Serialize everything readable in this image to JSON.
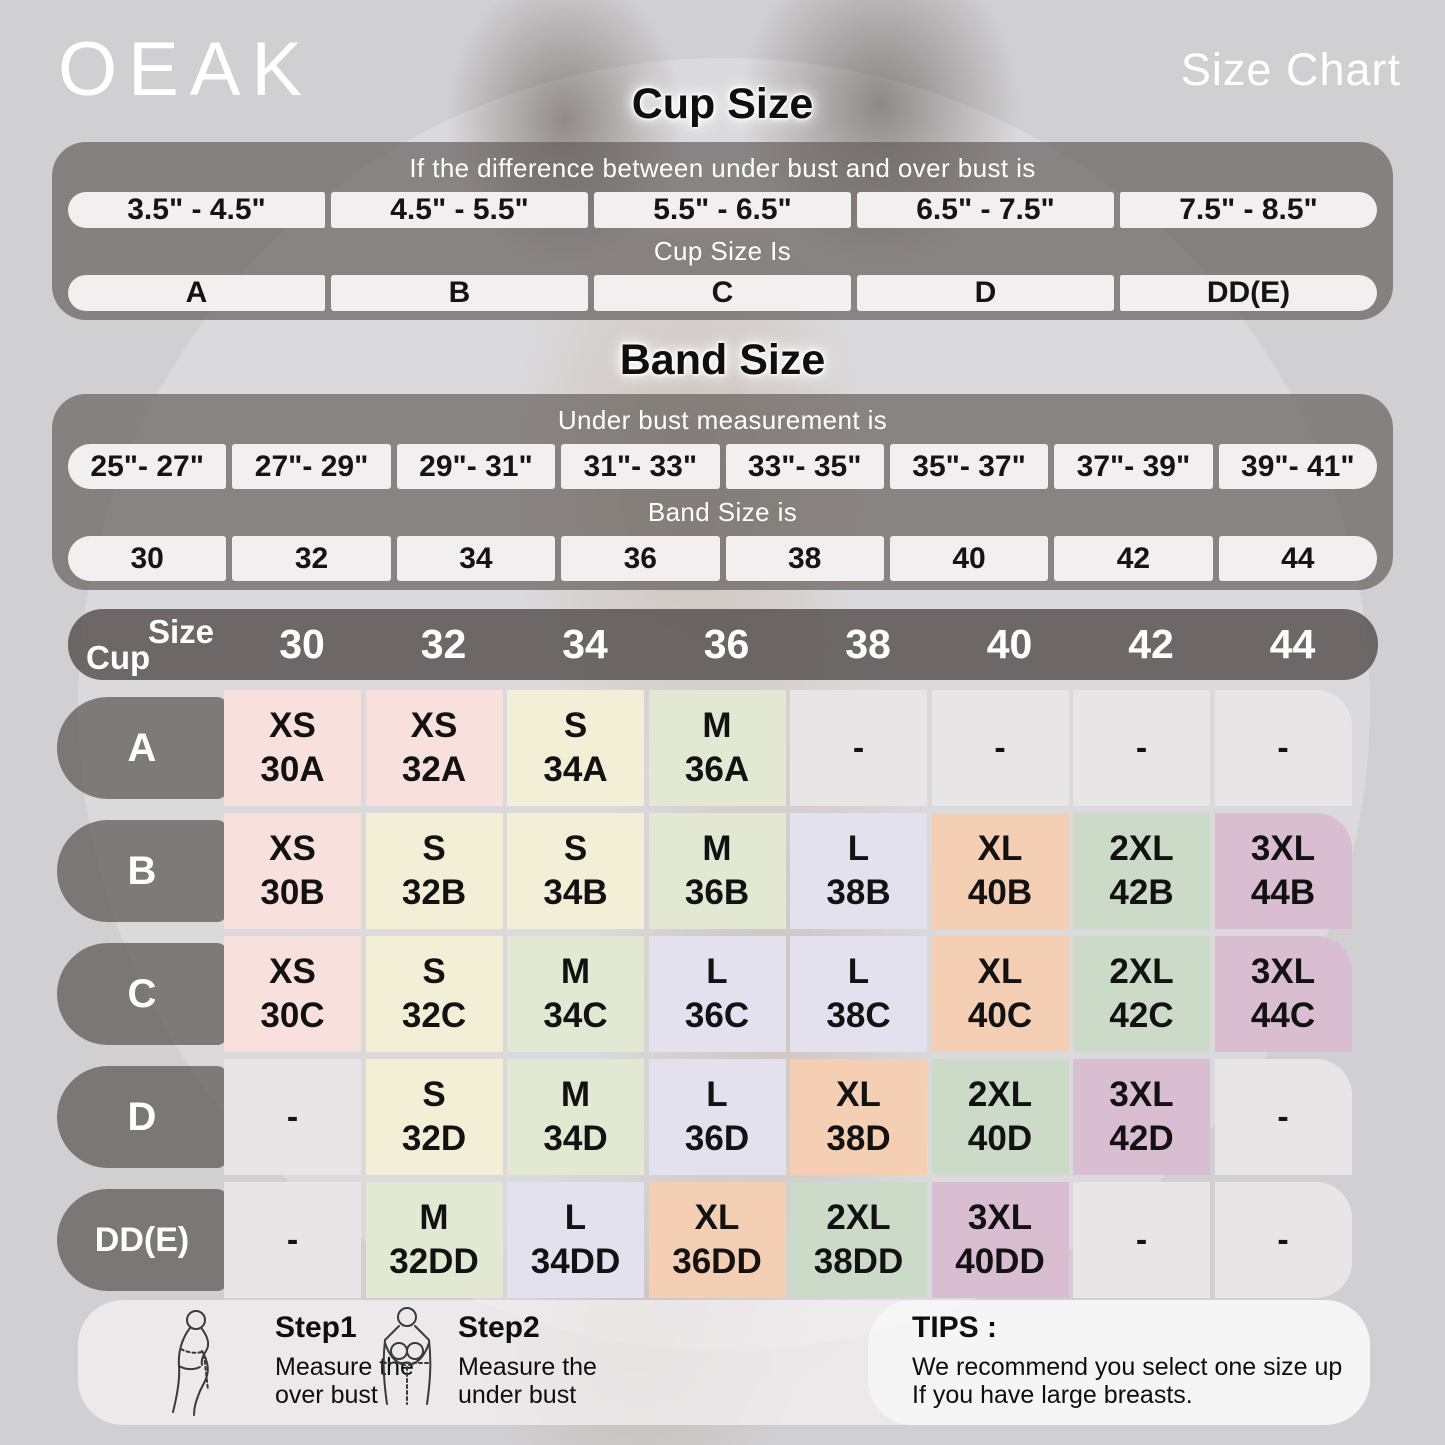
{
  "header": {
    "brand": "OEAK",
    "title": "Size Chart"
  },
  "cup_section": {
    "heading": "Cup Size",
    "condition": "If the difference between under bust and over bust is",
    "ranges": [
      "3.5\" - 4.5\"",
      "4.5\" - 5.5\"",
      "5.5\" - 6.5\"",
      "6.5\" - 7.5\"",
      "7.5\" - 8.5\""
    ],
    "result_label": "Cup Size Is",
    "cups": [
      "A",
      "B",
      "C",
      "D",
      "DD(E)"
    ]
  },
  "band_section": {
    "heading": "Band Size",
    "condition": "Under bust measurement is",
    "ranges": [
      "25\"- 27\"",
      "27\"- 29\"",
      "29\"- 31\"",
      "31\"- 33\"",
      "33\"- 35\"",
      "35\"- 37\"",
      "37\"- 39\"",
      "39\"- 41\""
    ],
    "result_label": "Band Size is",
    "bands": [
      "30",
      "32",
      "34",
      "36",
      "38",
      "40",
      "42",
      "44"
    ]
  },
  "matrix": {
    "corner_top": "Size",
    "corner_bottom": "Cup",
    "columns": [
      "30",
      "32",
      "34",
      "36",
      "38",
      "40",
      "42",
      "44"
    ],
    "rows": [
      {
        "cup": "A",
        "cells": [
          {
            "size": "XS",
            "code": "30A",
            "color": "pink"
          },
          {
            "size": "XS",
            "code": "32A",
            "color": "pink"
          },
          {
            "size": "S",
            "code": "34A",
            "color": "cream"
          },
          {
            "size": "M",
            "code": "36A",
            "color": "green"
          },
          {
            "size": "-",
            "code": "",
            "color": "gray"
          },
          {
            "size": "-",
            "code": "",
            "color": "gray"
          },
          {
            "size": "-",
            "code": "",
            "color": "gray"
          },
          {
            "size": "-",
            "code": "",
            "color": "gray"
          }
        ]
      },
      {
        "cup": "B",
        "cells": [
          {
            "size": "XS",
            "code": "30B",
            "color": "pink"
          },
          {
            "size": "S",
            "code": "32B",
            "color": "cream"
          },
          {
            "size": "S",
            "code": "34B",
            "color": "cream"
          },
          {
            "size": "M",
            "code": "36B",
            "color": "green"
          },
          {
            "size": "L",
            "code": "38B",
            "color": "lavender"
          },
          {
            "size": "XL",
            "code": "40B",
            "color": "peach"
          },
          {
            "size": "2XL",
            "code": "42B",
            "color": "sage"
          },
          {
            "size": "3XL",
            "code": "44B",
            "color": "mauve"
          }
        ]
      },
      {
        "cup": "C",
        "cells": [
          {
            "size": "XS",
            "code": "30C",
            "color": "pink"
          },
          {
            "size": "S",
            "code": "32C",
            "color": "cream"
          },
          {
            "size": "M",
            "code": "34C",
            "color": "green"
          },
          {
            "size": "L",
            "code": "36C",
            "color": "lavender"
          },
          {
            "size": "L",
            "code": "38C",
            "color": "lavender"
          },
          {
            "size": "XL",
            "code": "40C",
            "color": "peach"
          },
          {
            "size": "2XL",
            "code": "42C",
            "color": "sage"
          },
          {
            "size": "3XL",
            "code": "44C",
            "color": "mauve"
          }
        ]
      },
      {
        "cup": "D",
        "cells": [
          {
            "size": "-",
            "code": "",
            "color": "gray"
          },
          {
            "size": "S",
            "code": "32D",
            "color": "cream"
          },
          {
            "size": "M",
            "code": "34D",
            "color": "green"
          },
          {
            "size": "L",
            "code": "36D",
            "color": "lavender"
          },
          {
            "size": "XL",
            "code": "38D",
            "color": "peach"
          },
          {
            "size": "2XL",
            "code": "40D",
            "color": "sage"
          },
          {
            "size": "3XL",
            "code": "42D",
            "color": "mauve"
          },
          {
            "size": "-",
            "code": "",
            "color": "gray"
          }
        ]
      },
      {
        "cup": "DD(E)",
        "cells": [
          {
            "size": "-",
            "code": "",
            "color": "gray"
          },
          {
            "size": "M",
            "code": "32DD",
            "color": "green"
          },
          {
            "size": "L",
            "code": "34DD",
            "color": "lavender"
          },
          {
            "size": "XL",
            "code": "36DD",
            "color": "peach"
          },
          {
            "size": "2XL",
            "code": "38DD",
            "color": "sage"
          },
          {
            "size": "3XL",
            "code": "40DD",
            "color": "mauve"
          },
          {
            "size": "-",
            "code": "",
            "color": "gray"
          },
          {
            "size": "-",
            "code": "",
            "color": "gray"
          }
        ]
      }
    ]
  },
  "colors": {
    "pink": "#f8e1dd",
    "cream": "#f3eed6",
    "green": "#e3e8d3",
    "lavender": "#e3e1ee",
    "peach": "#f4cfb3",
    "sage": "#ccdbc7",
    "mauve": "#d9bdd0",
    "gray": "#e7e5e6"
  },
  "footer": {
    "step1": {
      "title": "Step1",
      "line1": "Measure the",
      "line2": "over bust"
    },
    "step2": {
      "title": "Step2",
      "line1": "Measure the",
      "line2": "under bust"
    },
    "tips": {
      "title": "TIPS :",
      "line1": "We recommend you select one size up",
      "line2": "If you have large breasts."
    }
  },
  "icons": {
    "step1": "measure-over-bust-figure",
    "step2": "measure-under-bust-figure"
  }
}
